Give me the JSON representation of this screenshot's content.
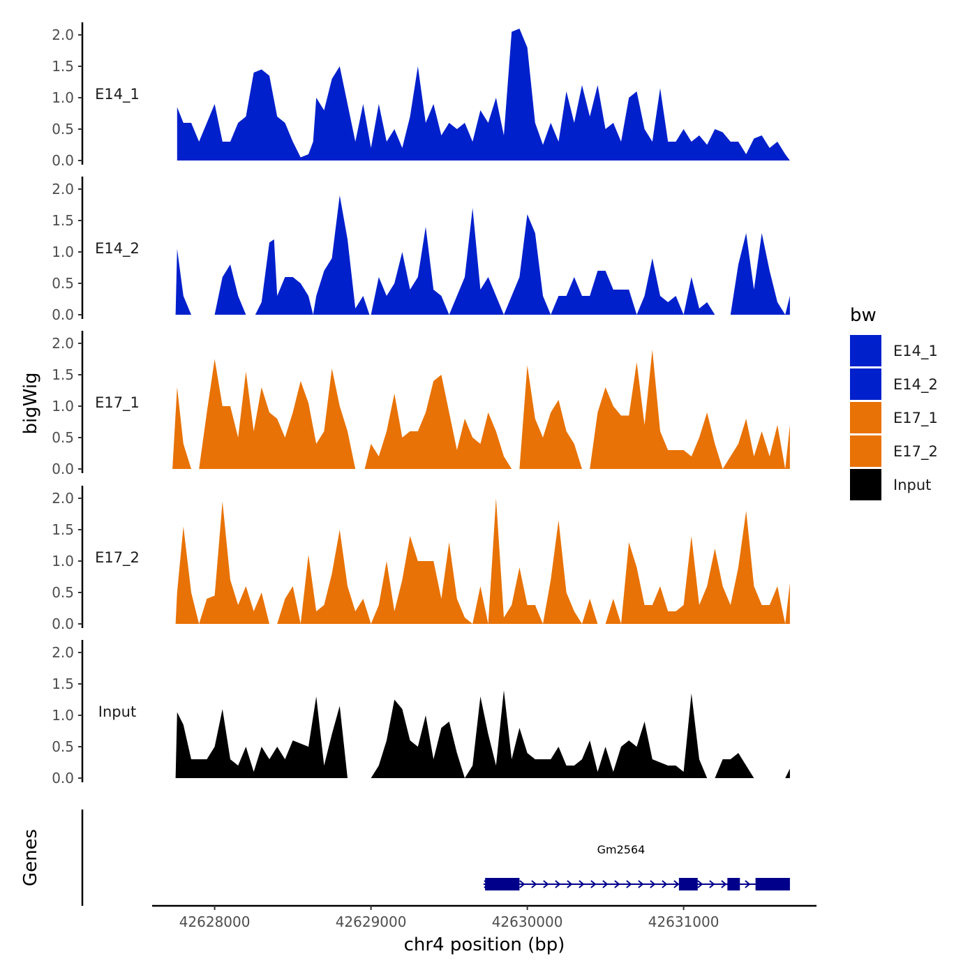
{
  "chart_data": {
    "type": "area",
    "xlabel": "chr4 position (bp)",
    "ylabel": "bigWig",
    "genes_label": "Genes",
    "xlim": [
      42627600,
      42631850
    ],
    "ylim": [
      0,
      2.2
    ],
    "x_ticks": [
      42628000,
      42629000,
      42630000,
      42631000
    ],
    "x_tick_labels": [
      "42628000",
      "42629000",
      "42630000",
      "42631000"
    ],
    "y_ticks": [
      0,
      0.5,
      1,
      1.5,
      2
    ],
    "y_tick_labels": [
      "0.0",
      "0.5",
      "1.0",
      "1.5",
      "2.0"
    ],
    "legend": {
      "title": "bw",
      "items": [
        {
          "label": "E14_1",
          "color": "#0020CC"
        },
        {
          "label": "E14_2",
          "color": "#0020CC"
        },
        {
          "label": "E17_1",
          "color": "#E87205"
        },
        {
          "label": "E17_2",
          "color": "#E87205"
        },
        {
          "label": "Input",
          "color": "#000000"
        }
      ]
    },
    "series": [
      {
        "name": "E14_1",
        "color": "#0020CC",
        "x": [
          42627760,
          42627800,
          42627850,
          42627900,
          42627950,
          42628000,
          42628050,
          42628100,
          42628150,
          42628200,
          42628250,
          42628300,
          42628350,
          42628400,
          42628450,
          42628500,
          42628550,
          42628600,
          42628630,
          42628650,
          42628700,
          42628750,
          42628800,
          42628850,
          42628900,
          42628950,
          42629000,
          42629050,
          42629100,
          42629150,
          42629200,
          42629250,
          42629300,
          42629350,
          42629400,
          42629450,
          42629500,
          42629550,
          42629600,
          42629650,
          42629700,
          42629750,
          42629800,
          42629850,
          42629900,
          42629950,
          42630000,
          42630050,
          42630100,
          42630150,
          42630200,
          42630250,
          42630300,
          42630350,
          42630400,
          42630450,
          42630500,
          42630550,
          42630600,
          42630650,
          42630700,
          42630750,
          42630800,
          42630850,
          42630900,
          42630950,
          42631000,
          42631050,
          42631100,
          42631150,
          42631200,
          42631250,
          42631300,
          42631350,
          42631400,
          42631450,
          42631500,
          42631550,
          42631600,
          42631650,
          42631680
        ],
        "values": [
          0.85,
          0.6,
          0.6,
          0.3,
          0.6,
          0.9,
          0.3,
          0.3,
          0.6,
          0.7,
          1.4,
          1.45,
          1.35,
          0.7,
          0.6,
          0.3,
          0.05,
          0.1,
          0.3,
          1.0,
          0.8,
          1.3,
          1.5,
          0.9,
          0.3,
          0.9,
          0.2,
          0.9,
          0.3,
          0.5,
          0.2,
          0.7,
          1.5,
          0.6,
          0.9,
          0.4,
          0.6,
          0.5,
          0.6,
          0.3,
          0.8,
          0.6,
          1.0,
          0.4,
          2.05,
          2.1,
          1.8,
          0.6,
          0.25,
          0.6,
          0.3,
          1.1,
          0.6,
          1.2,
          0.7,
          1.2,
          0.5,
          0.6,
          0.3,
          1.0,
          1.1,
          0.5,
          0.3,
          1.15,
          0.3,
          0.3,
          0.5,
          0.3,
          0.4,
          0.25,
          0.5,
          0.45,
          0.3,
          0.3,
          0.1,
          0.35,
          0.4,
          0.2,
          0.3,
          0.1,
          0.0
        ]
      },
      {
        "name": "E14_2",
        "color": "#0020CC",
        "x": [
          42627750,
          42627760,
          42627800,
          42627850,
          42627880,
          42628000,
          42628050,
          42628100,
          42628150,
          42628200,
          42628260,
          42628300,
          42628350,
          42628380,
          42628400,
          42628450,
          42628500,
          42628550,
          42628600,
          42628630,
          42628650,
          42628700,
          42628750,
          42628800,
          42628850,
          42628900,
          42628950,
          42628990,
          42629000,
          42629050,
          42629100,
          42629150,
          42629200,
          42629250,
          42629300,
          42629350,
          42629400,
          42629450,
          42629500,
          42629550,
          42629600,
          42629650,
          42629700,
          42629750,
          42629800,
          42629850,
          42629900,
          42629950,
          42630000,
          42630050,
          42630100,
          42630150,
          42630200,
          42630250,
          42630300,
          42630350,
          42630400,
          42630450,
          42630500,
          42630550,
          42630600,
          42630650,
          42630700,
          42630750,
          42630800,
          42630850,
          42630900,
          42630950,
          42631000,
          42631050,
          42631100,
          42631150,
          42631200,
          42631250,
          42631300,
          42631350,
          42631400,
          42631450,
          42631500,
          42631550,
          42631600,
          42631650,
          42631680
        ],
        "values": [
          0.0,
          1.05,
          0.3,
          0.0,
          0.0,
          0.0,
          0.6,
          0.8,
          0.3,
          0.0,
          0.0,
          0.2,
          1.15,
          1.2,
          0.3,
          0.6,
          0.6,
          0.5,
          0.3,
          0.0,
          0.3,
          0.7,
          0.9,
          1.9,
          1.2,
          0.1,
          0.3,
          0.0,
          0.0,
          0.6,
          0.3,
          0.5,
          1.0,
          0.4,
          0.6,
          1.4,
          0.4,
          0.3,
          0.0,
          0.3,
          0.6,
          1.7,
          0.4,
          0.6,
          0.3,
          0.0,
          0.3,
          0.6,
          1.6,
          1.3,
          0.3,
          0.0,
          0.3,
          0.3,
          0.6,
          0.3,
          0.3,
          0.7,
          0.7,
          0.4,
          0.4,
          0.4,
          0.0,
          0.3,
          0.9,
          0.3,
          0.2,
          0.3,
          0.0,
          0.6,
          0.1,
          0.2,
          0.0,
          0.0,
          0.0,
          0.8,
          1.3,
          0.4,
          1.3,
          0.7,
          0.2,
          0.0,
          0.3
        ]
      },
      {
        "name": "E17_1",
        "color": "#E87205",
        "x": [
          42627730,
          42627760,
          42627800,
          42627850,
          42627880,
          42627900,
          42627950,
          42628000,
          42628050,
          42628100,
          42628150,
          42628200,
          42628250,
          42628300,
          42628350,
          42628400,
          42628450,
          42628500,
          42628550,
          42628600,
          42628650,
          42628700,
          42628750,
          42628800,
          42628850,
          42628900,
          42628930,
          42628960,
          42629000,
          42629050,
          42629100,
          42629150,
          42629200,
          42629250,
          42629300,
          42629350,
          42629400,
          42629450,
          42629500,
          42629550,
          42629600,
          42629650,
          42629700,
          42629750,
          42629800,
          42629850,
          42629900,
          42629950,
          42630000,
          42630050,
          42630100,
          42630150,
          42630200,
          42630250,
          42630300,
          42630350,
          42630400,
          42630450,
          42630500,
          42630550,
          42630600,
          42630650,
          42630700,
          42630750,
          42630800,
          42630850,
          42630900,
          42630950,
          42631000,
          42631050,
          42631100,
          42631150,
          42631200,
          42631250,
          42631300,
          42631350,
          42631400,
          42631450,
          42631500,
          42631550,
          42631600,
          42631650,
          42631680
        ],
        "values": [
          0.0,
          1.3,
          0.4,
          0.0,
          0.0,
          0.0,
          0.9,
          1.75,
          1.0,
          1.0,
          0.5,
          1.55,
          0.6,
          1.3,
          0.9,
          0.8,
          0.5,
          0.9,
          1.4,
          1.05,
          0.4,
          0.6,
          1.6,
          1.0,
          0.6,
          0.0,
          0.0,
          0.0,
          0.4,
          0.2,
          0.6,
          1.2,
          0.5,
          0.6,
          0.6,
          0.9,
          1.4,
          1.5,
          0.9,
          0.3,
          0.8,
          0.5,
          0.4,
          0.9,
          0.6,
          0.2,
          0.0,
          0.0,
          1.65,
          0.8,
          0.5,
          0.9,
          1.1,
          0.6,
          0.4,
          0.0,
          0.0,
          0.9,
          1.3,
          1.0,
          0.85,
          0.85,
          1.7,
          0.7,
          1.9,
          0.6,
          0.3,
          0.3,
          0.3,
          0.2,
          0.5,
          0.9,
          0.4,
          0.0,
          0.2,
          0.4,
          0.8,
          0.2,
          0.6,
          0.2,
          0.7,
          0.0,
          0.7
        ]
      },
      {
        "name": "E17_2",
        "color": "#E87205",
        "x": [
          42627750,
          42627760,
          42627800,
          42627850,
          42627900,
          42627950,
          42628000,
          42628050,
          42628100,
          42628150,
          42628200,
          42628250,
          42628300,
          42628350,
          42628400,
          42628450,
          42628500,
          42628550,
          42628600,
          42628650,
          42628700,
          42628750,
          42628800,
          42628850,
          42628900,
          42628950,
          42629000,
          42629050,
          42629100,
          42629150,
          42629200,
          42629250,
          42629300,
          42629350,
          42629400,
          42629450,
          42629500,
          42629550,
          42629600,
          42629650,
          42629700,
          42629750,
          42629800,
          42629850,
          42629900,
          42629950,
          42630000,
          42630050,
          42630100,
          42630150,
          42630200,
          42630250,
          42630300,
          42630350,
          42630400,
          42630450,
          42630500,
          42630550,
          42630600,
          42630650,
          42630700,
          42630750,
          42630800,
          42630850,
          42630900,
          42630950,
          42631000,
          42631050,
          42631100,
          42631150,
          42631200,
          42631250,
          42631300,
          42631350,
          42631400,
          42631450,
          42631500,
          42631550,
          42631600,
          42631650,
          42631680
        ],
        "values": [
          0.0,
          0.5,
          1.55,
          0.5,
          0.0,
          0.4,
          0.45,
          1.95,
          0.7,
          0.3,
          0.6,
          0.2,
          0.5,
          0.0,
          0.0,
          0.4,
          0.6,
          0.0,
          1.1,
          0.2,
          0.3,
          0.8,
          1.5,
          0.6,
          0.2,
          0.4,
          0.0,
          0.3,
          1.0,
          0.2,
          0.7,
          1.4,
          1.0,
          1.0,
          1.0,
          0.4,
          1.3,
          0.4,
          0.1,
          0.0,
          0.6,
          0.0,
          2.0,
          0.1,
          0.3,
          0.9,
          0.3,
          0.3,
          0.0,
          0.7,
          1.65,
          0.5,
          0.2,
          0.0,
          0.4,
          0.0,
          0.0,
          0.4,
          0.0,
          1.3,
          0.9,
          0.3,
          0.3,
          0.6,
          0.2,
          0.2,
          0.3,
          1.4,
          0.3,
          0.6,
          1.2,
          0.6,
          0.3,
          0.9,
          1.8,
          0.6,
          0.3,
          0.3,
          0.6,
          0.0,
          0.65
        ]
      },
      {
        "name": "Input",
        "color": "#000000",
        "x": [
          42627750,
          42627760,
          42627800,
          42627850,
          42627900,
          42627950,
          42628000,
          42628050,
          42628100,
          42628150,
          42628200,
          42628250,
          42628300,
          42628350,
          42628400,
          42628450,
          42628500,
          42628550,
          42628600,
          42628650,
          42628700,
          42628750,
          42628800,
          42628850,
          42628900,
          42628950,
          42629000,
          42629050,
          42629100,
          42629150,
          42629200,
          42629250,
          42629300,
          42629350,
          42629400,
          42629450,
          42629500,
          42629550,
          42629600,
          42629650,
          42629700,
          42629750,
          42629800,
          42629850,
          42629900,
          42629950,
          42630000,
          42630050,
          42630100,
          42630150,
          42630200,
          42630250,
          42630300,
          42630350,
          42630400,
          42630450,
          42630500,
          42630550,
          42630600,
          42630650,
          42630700,
          42630750,
          42630800,
          42630850,
          42630900,
          42630950,
          42631000,
          42631050,
          42631100,
          42631150,
          42631200,
          42631250,
          42631300,
          42631350,
          42631400,
          42631450,
          42631500,
          42631550,
          42631600,
          42631650,
          42631680
        ],
        "values": [
          0.0,
          1.05,
          0.85,
          0.3,
          0.3,
          0.3,
          0.5,
          1.1,
          0.3,
          0.2,
          0.5,
          0.1,
          0.5,
          0.3,
          0.5,
          0.3,
          0.6,
          0.55,
          0.5,
          1.3,
          0.2,
          0.7,
          1.15,
          0.0,
          0.0,
          0.0,
          0.0,
          0.2,
          0.6,
          1.25,
          1.1,
          0.6,
          0.5,
          1.0,
          0.3,
          0.8,
          0.9,
          0.4,
          0.0,
          0.2,
          1.3,
          0.7,
          0.2,
          1.4,
          0.3,
          0.8,
          0.4,
          0.3,
          0.3,
          0.3,
          0.5,
          0.2,
          0.2,
          0.3,
          0.6,
          0.1,
          0.5,
          0.1,
          0.5,
          0.6,
          0.5,
          0.9,
          0.3,
          0.25,
          0.2,
          0.2,
          0.1,
          1.35,
          0.3,
          0.0,
          0.0,
          0.3,
          0.3,
          0.4,
          0.2,
          0.0,
          0.0,
          0.0,
          0.0,
          0.0,
          0.15
        ]
      }
    ],
    "genes": [
      {
        "name": "Gm2564",
        "start": 42629720,
        "end": 42631680,
        "exons": [
          [
            42629730,
            42629950
          ],
          [
            42630970,
            42631090
          ],
          [
            42631280,
            42631360
          ],
          [
            42631460,
            42631680
          ]
        ]
      }
    ]
  }
}
